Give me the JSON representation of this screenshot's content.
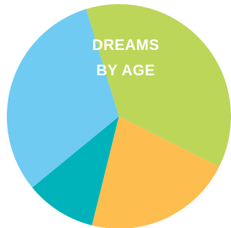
{
  "chart_data": {
    "type": "pie",
    "title_lines": [
      "DREAMS",
      "BY AGE"
    ],
    "start_angle_deg": -17,
    "slices": [
      {
        "value": 37.1,
        "color": "#bcd65a"
      },
      {
        "value": 21.5,
        "color": "#fdbd4f"
      },
      {
        "value": 10.2,
        "color": "#00b3ba"
      },
      {
        "value": 31.2,
        "color": "#6fcbf2"
      }
    ]
  }
}
